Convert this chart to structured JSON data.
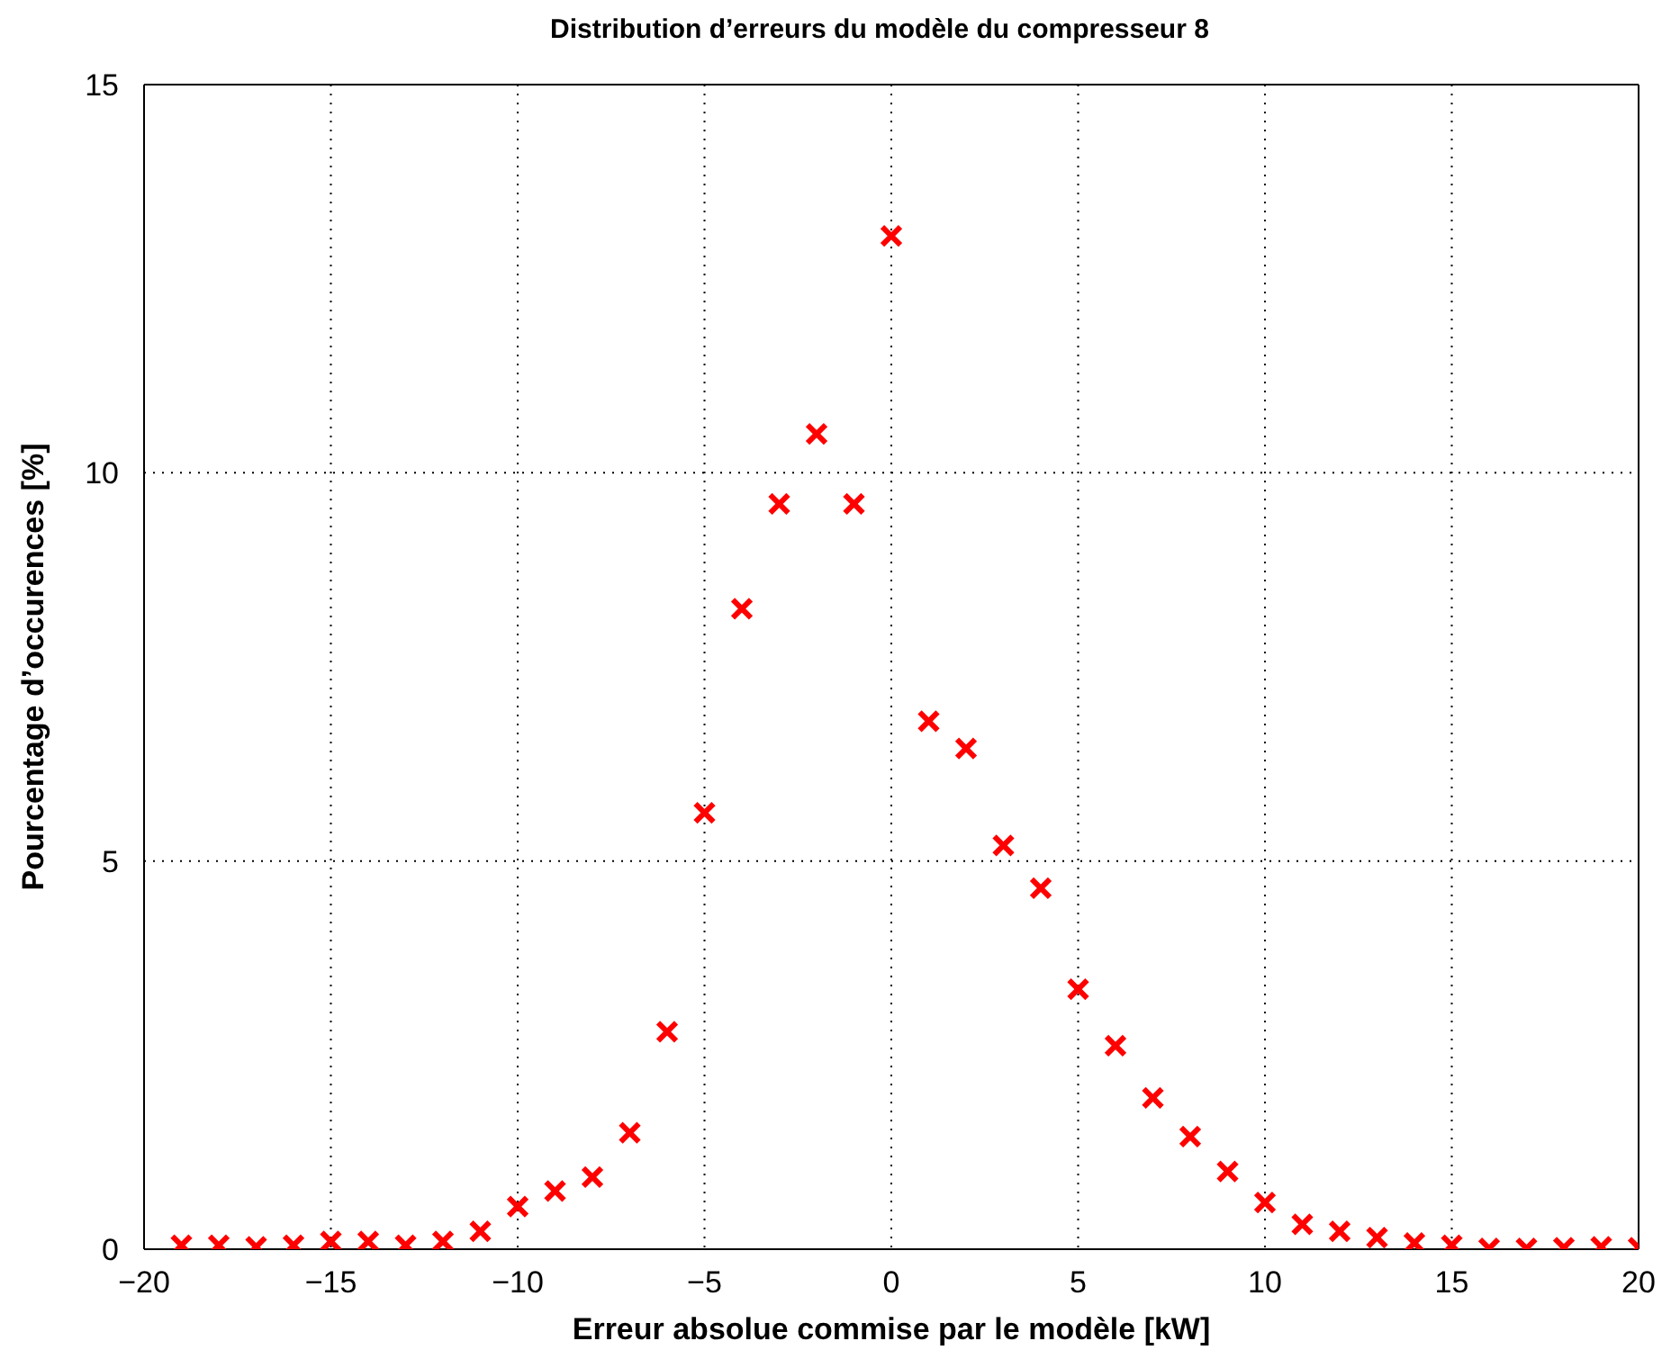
{
  "chart_data": {
    "type": "scatter",
    "title": "Distribution d’erreurs du modèle du compresseur 8",
    "xlabel": "Erreur absolue commise par le modèle  [kW]",
    "ylabel": "Pourcentage d’occurences [%]",
    "x": [
      -19,
      -18,
      -17,
      -16,
      -15,
      -14,
      -13,
      -12,
      -11,
      -10,
      -9,
      -8,
      -7,
      -6,
      -5,
      -4,
      -3,
      -2,
      -1,
      0,
      1,
      2,
      3,
      4,
      5,
      6,
      7,
      8,
      9,
      10,
      11,
      12,
      13,
      14,
      15,
      16,
      17,
      18,
      19,
      20
    ],
    "series": [
      {
        "color": "#ff0000",
        "values": [
          0.05,
          0.05,
          0.03,
          0.05,
          0.1,
          0.1,
          0.05,
          0.1,
          0.23,
          0.55,
          0.75,
          0.93,
          1.5,
          2.8,
          5.62,
          8.25,
          9.6,
          10.5,
          9.6,
          13.05,
          6.8,
          6.45,
          5.2,
          4.65,
          3.35,
          2.62,
          1.95,
          1.45,
          1.0,
          0.6,
          0.32,
          0.23,
          0.15,
          0.08,
          0.05,
          0.01,
          0.01,
          0.02,
          0.03,
          0.02
        ]
      }
    ],
    "xlim": [
      -20,
      20
    ],
    "xticks": [
      -20,
      -15,
      -10,
      -5,
      0,
      5,
      10,
      15,
      20
    ],
    "ylim": [
      0,
      15
    ],
    "yticks": [
      0,
      5,
      10,
      15
    ],
    "grid": true,
    "marker": "cross"
  }
}
